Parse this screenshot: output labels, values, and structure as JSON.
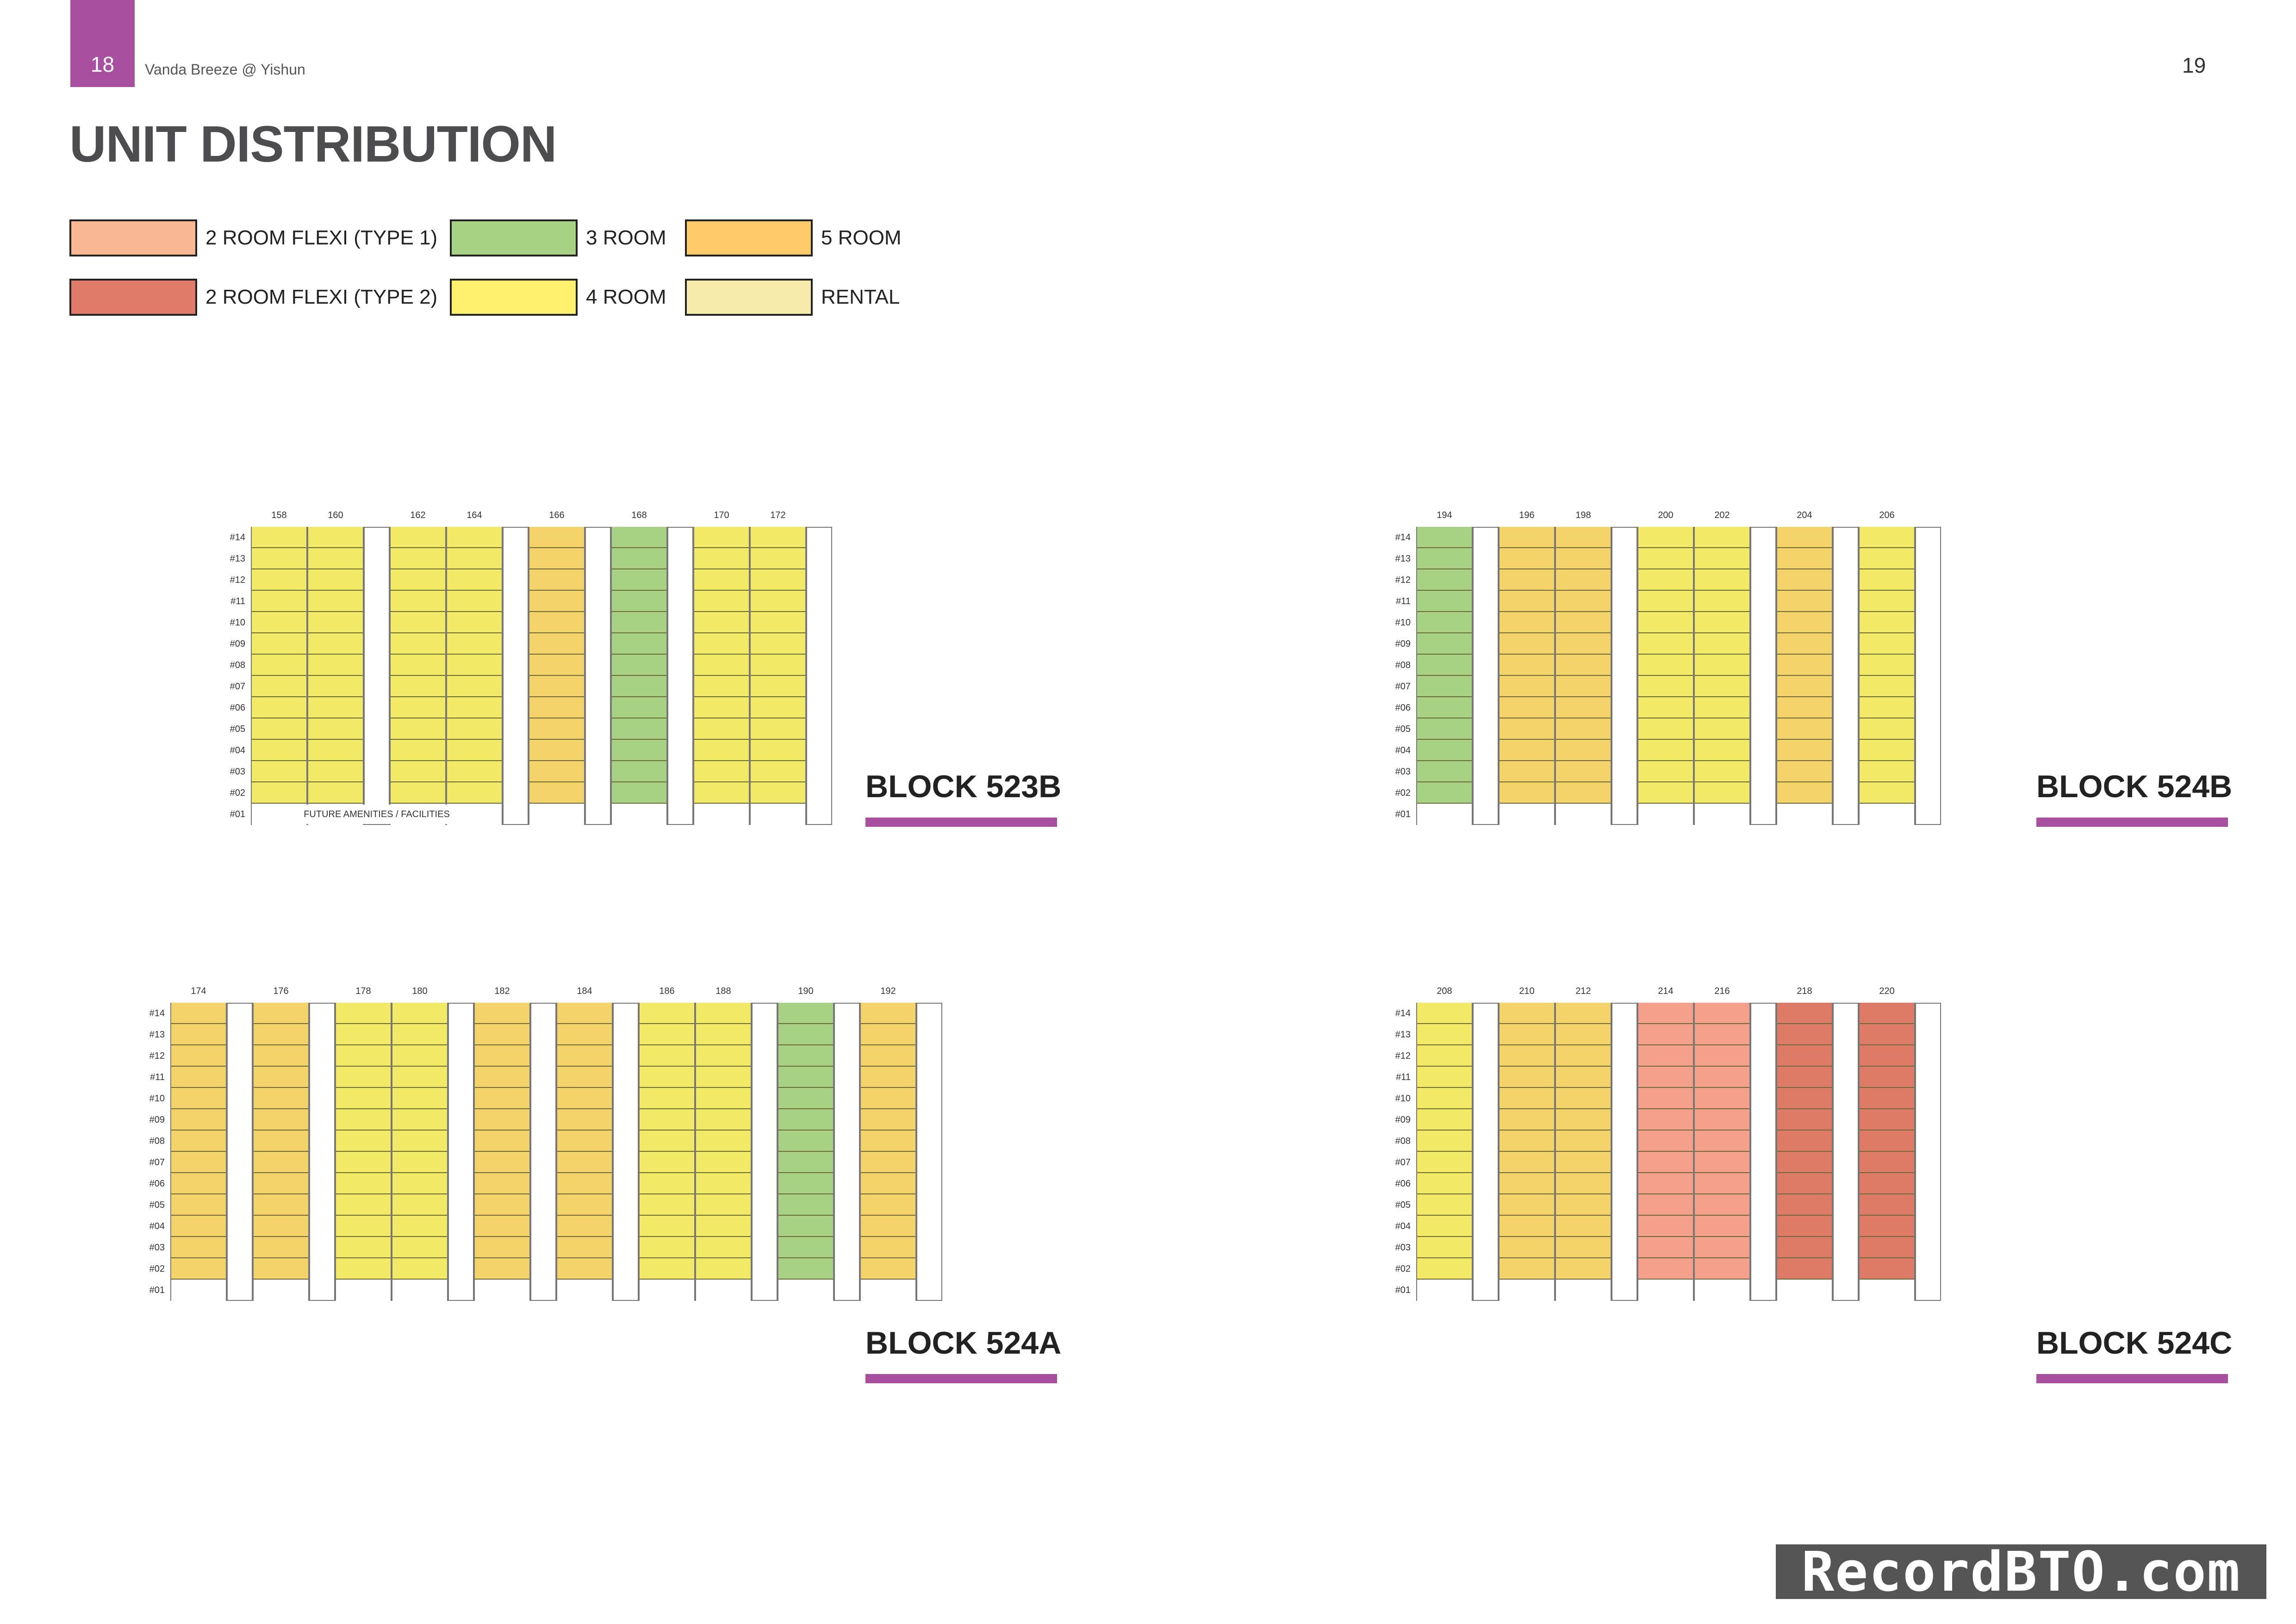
{
  "header": {
    "page_left": "18",
    "doc_title": "Vanda Breeze @ Yishun",
    "page_right": "19"
  },
  "title": "UNIT DISTRIBUTION",
  "colors": {
    "flexi1": "#f9b793",
    "flexi2": "#e07b69",
    "room3": "#a8d283",
    "room4": "#fff16d",
    "room5": "#ffcb6a",
    "rental": "#f7ebab",
    "room4_plan": "#f2ea66",
    "room5_plan": "#f5d36b",
    "room3_plan": "#a8d283",
    "flexi1_plan": "#f5a08a",
    "flexi2_plan": "#de7b66",
    "accent": "#a94f9f"
  },
  "legend": [
    {
      "label": "2 ROOM FLEXI (TYPE 1)",
      "color": "#f9b793"
    },
    {
      "label": "3 ROOM",
      "color": "#a8d283"
    },
    {
      "label": "5 ROOM",
      "color": "#ffcb6a"
    },
    {
      "label": "2 ROOM FLEXI (TYPE 2)",
      "color": "#e07b69"
    },
    {
      "label": "4 ROOM",
      "color": "#fff16d"
    },
    {
      "label": "RENTAL",
      "color": "#f7ebab"
    }
  ],
  "floors": [
    "#14",
    "#13",
    "#12",
    "#11",
    "#10",
    "#09",
    "#08",
    "#07",
    "#06",
    "#05",
    "#04",
    "#03",
    "#02",
    "#01"
  ],
  "blocks": [
    {
      "name": "BLOCK 523B",
      "future_label": "FUTURE AMENITIES / FACILITIES",
      "columns": [
        {
          "unit": "158",
          "type": "room4_plan"
        },
        {
          "unit": "160",
          "type": "room4_plan"
        },
        {
          "unit": "",
          "type": "gap"
        },
        {
          "unit": "162",
          "type": "room4_plan"
        },
        {
          "unit": "164",
          "type": "room4_plan"
        },
        {
          "unit": "",
          "type": "gap"
        },
        {
          "unit": "166",
          "type": "room5_plan"
        },
        {
          "unit": "",
          "type": "gap"
        },
        {
          "unit": "168",
          "type": "room3_plan"
        },
        {
          "unit": "",
          "type": "gap"
        },
        {
          "unit": "170",
          "type": "room4_plan"
        },
        {
          "unit": "172",
          "type": "room4_plan"
        },
        {
          "unit": "",
          "type": "gap"
        }
      ]
    },
    {
      "name": "BLOCK 524B",
      "future_label": "",
      "columns": [
        {
          "unit": "194",
          "type": "room3_plan"
        },
        {
          "unit": "",
          "type": "gap"
        },
        {
          "unit": "196",
          "type": "room5_plan"
        },
        {
          "unit": "198",
          "type": "room5_plan"
        },
        {
          "unit": "",
          "type": "gap"
        },
        {
          "unit": "200",
          "type": "room4_plan"
        },
        {
          "unit": "202",
          "type": "room4_plan"
        },
        {
          "unit": "",
          "type": "gap"
        },
        {
          "unit": "204",
          "type": "room5_plan"
        },
        {
          "unit": "",
          "type": "gap"
        },
        {
          "unit": "206",
          "type": "room4_plan"
        },
        {
          "unit": "",
          "type": "gap"
        }
      ]
    },
    {
      "name": "BLOCK 524A",
      "future_label": "",
      "columns": [
        {
          "unit": "174",
          "type": "room5_plan"
        },
        {
          "unit": "",
          "type": "gap"
        },
        {
          "unit": "176",
          "type": "room5_plan"
        },
        {
          "unit": "",
          "type": "gap"
        },
        {
          "unit": "178",
          "type": "room4_plan"
        },
        {
          "unit": "180",
          "type": "room4_plan"
        },
        {
          "unit": "",
          "type": "gap"
        },
        {
          "unit": "182",
          "type": "room5_plan"
        },
        {
          "unit": "",
          "type": "gap"
        },
        {
          "unit": "184",
          "type": "room5_plan"
        },
        {
          "unit": "",
          "type": "gap"
        },
        {
          "unit": "186",
          "type": "room4_plan"
        },
        {
          "unit": "188",
          "type": "room4_plan"
        },
        {
          "unit": "",
          "type": "gap"
        },
        {
          "unit": "190",
          "type": "room3_plan"
        },
        {
          "unit": "",
          "type": "gap"
        },
        {
          "unit": "192",
          "type": "room5_plan"
        },
        {
          "unit": "",
          "type": "gap"
        }
      ]
    },
    {
      "name": "BLOCK 524C",
      "future_label": "",
      "columns": [
        {
          "unit": "208",
          "type": "room4_plan"
        },
        {
          "unit": "",
          "type": "gap"
        },
        {
          "unit": "210",
          "type": "room5_plan"
        },
        {
          "unit": "212",
          "type": "room5_plan"
        },
        {
          "unit": "",
          "type": "gap"
        },
        {
          "unit": "214",
          "type": "flexi1_plan"
        },
        {
          "unit": "216",
          "type": "flexi1_plan"
        },
        {
          "unit": "",
          "type": "gap"
        },
        {
          "unit": "218",
          "type": "flexi2_plan"
        },
        {
          "unit": "",
          "type": "gap"
        },
        {
          "unit": "220",
          "type": "flexi2_plan"
        },
        {
          "unit": "",
          "type": "gap"
        }
      ]
    }
  ],
  "watermark": "RecordBTO.com"
}
